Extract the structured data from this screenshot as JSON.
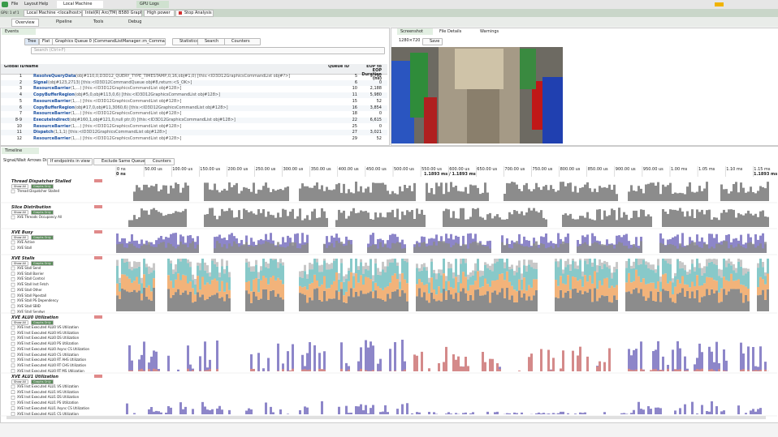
{
  "app": {
    "menu": [
      "File",
      "Layout",
      "Help"
    ],
    "tabs": [
      "Local Machine",
      "GPU Logs"
    ]
  },
  "toolbar": {
    "gpu": "GPU: 1 of 1",
    "machine": "Local Machine <localhost>",
    "device": "Intel(R) Arc(TM) B580 Graphics",
    "power": "High power",
    "stop": "Stop Analysis"
  },
  "views": [
    "Overview",
    "Pipeline",
    "Tools",
    "Debug"
  ],
  "events": {
    "title": "Events",
    "buttons": [
      "Tree",
      "Flat"
    ],
    "queue": "Graphics Queue 0 (CommandListManager::m_CommandQueue)",
    "actions": [
      "Statistics",
      "Search",
      "Counters"
    ],
    "filter": "Search (Ctrl+F)",
    "columns": [
      "Global ID",
      "Name",
      "Queue ID",
      "EOP to EOP Duration (ns)"
    ],
    "rows": [
      [
        "1",
        "ResolveQueryData",
        "(obj#110,0,D3D12_QUERY_TYPE_TIMESTAMP,0,16,obj#1,0)  [this:<ID3D12GraphicsCommandList obj#?>]",
        "5",
        "9,792"
      ],
      [
        "2",
        "Signal",
        "(obj#123,2713)  [this:<ID3D12CommandQueue obj#8,return:<S_OK>]",
        "6",
        "0"
      ],
      [
        "3",
        "ResourceBarrier",
        "(1,...)  [this:<ID3D12GraphicsCommandList obj#128>]",
        "10",
        "2,188"
      ],
      [
        "4",
        "CopyBufferRegion",
        "(obj#5,0,obj#113,0,6)  [this:<ID3D12GraphicsCommandList obj#128>]",
        "11",
        "5,980"
      ],
      [
        "5",
        "ResourceBarrier",
        "(1,...)  [this:<ID3D12GraphicsCommandList obj#128>]",
        "15",
        "52"
      ],
      [
        "6",
        "CopyBufferRegion",
        "(obj#17,0,obj#11,3060,6)  [this:<ID3D12GraphicsCommandList obj#128>]",
        "16",
        "3,854"
      ],
      [
        "7",
        "ResourceBarrier",
        "(1,...)  [this:<ID3D12GraphicsCommandList obj#128>]",
        "18",
        "0"
      ],
      [
        "8-9",
        "ExecuteIndirect",
        "(obj#160,1,obj#121,0,null ptr,0)  [this:<ID3D12GraphicsCommandList obj#128>]",
        "22",
        "6,615"
      ],
      [
        "10",
        "ResourceBarrier",
        "(1,...)  [this:<ID3D12GraphicsCommandList obj#128>]",
        "25",
        "0"
      ],
      [
        "11",
        "Dispatch",
        "(1,1,1)  [this:<ID3D12GraphicsCommandList obj#128>]",
        "27",
        "3,021"
      ],
      [
        "12",
        "ResourceBarrier",
        "(1,...)  [this:<ID3D12GraphicsCommandList obj#128>]",
        "29",
        "52"
      ]
    ]
  },
  "screenshot": {
    "tabs": [
      "Screenshot",
      "File Details",
      "Warnings"
    ],
    "resolution": "1280×720",
    "save": "Save"
  },
  "timeline": {
    "title": "Timeline",
    "arrows_label": "Signal/Wait Arrows Display",
    "arrows_option": "If endpoints in view",
    "exclude": "Exclude Same Queue",
    "counters": "Counters",
    "start": "0 ns",
    "range": "1.1893 ms / 1.1893 ms",
    "end": "1.1893 ms",
    "ticks": [
      "0 ns",
      "50.00 us",
      "100.00 us",
      "150.00 us",
      "200.00 us",
      "250.00 us",
      "300.00 us",
      "350.00 us",
      "400.00 us",
      "450.00 us",
      "500.00 us",
      "550.00 us",
      "600.00 us",
      "650.00 us",
      "700.00 us",
      "750.00 us",
      "800.00 us",
      "850.00 us",
      "900.00 us",
      "950.00 us",
      "1.00 ms",
      "1.05 ms",
      "1.10 ms",
      "1.15 ms"
    ],
    "show_all": "Show All",
    "graphs_only": "Graphs Only",
    "groups": [
      {
        "name": "Thread Dispatcher Stalled",
        "items": [
          "Thread Dispatcher Stalled"
        ]
      },
      {
        "name": "Slice Distribution",
        "items": [
          "XVE Threads Occupancy All"
        ]
      },
      {
        "name": "XVE Busy",
        "items": [
          "XVE Active",
          "XVE Stall"
        ]
      },
      {
        "name": "XVE Stalls",
        "items": [
          "XVE Stall Send",
          "XVE Stall Barrier",
          "XVE Stall Control",
          "XVE Stall Inst Fetch",
          "XVE Stall Other",
          "XVE Stall Pipestall",
          "XVE Stall PS Dependency",
          "XVE Stall SBID",
          "XVE Stall Sendwr"
        ]
      },
      {
        "name": "XVE ALU0 Utilization",
        "items": [
          "XVE Inst Executed ALU0 VS Utilization",
          "XVE Inst Executed ALU0 HS Utilization",
          "XVE Inst Executed ALU0 DS Utilization",
          "XVE Inst Executed ALU0 PS Utilization",
          "XVE Inst Executed ALU0 Async CS Utilization",
          "XVE Inst Executed ALU0 CS Utilization",
          "XVE Inst Executed ALU0 RT AHS Utilization",
          "XVE Inst Executed ALU0 RT CHS Utilization",
          "XVE Inst Executed ALU0 RT MS Utilization"
        ]
      },
      {
        "name": "XVE ALU1 Utilization",
        "items": [
          "XVE Inst Executed ALU1 VS Utilization",
          "XVE Inst Executed ALU1 HS Utilization",
          "XVE Inst Executed ALU1 DS Utilization",
          "XVE Inst Executed ALU1 PS Utilization",
          "XVE Inst Executed ALU1 Async CS Utilization",
          "XVE Inst Executed ALU1 CS Utilization"
        ]
      }
    ]
  }
}
